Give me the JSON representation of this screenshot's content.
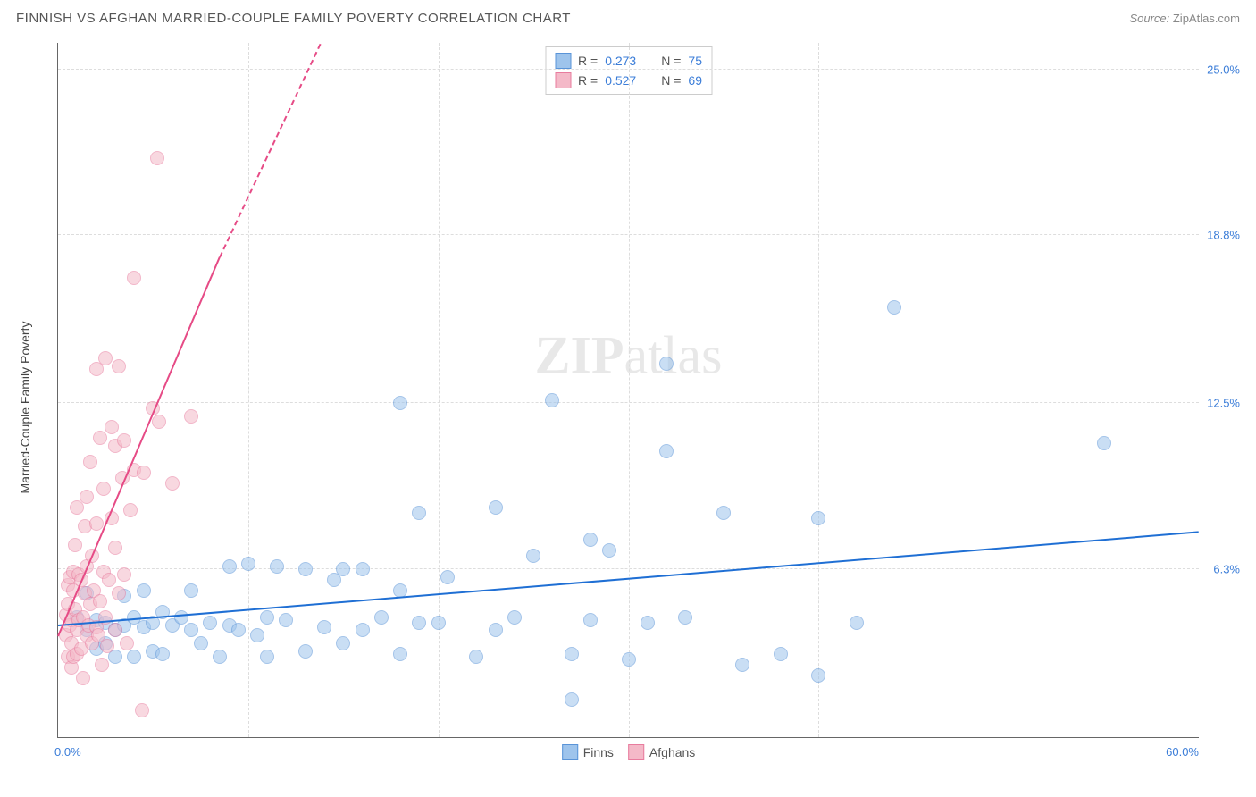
{
  "header": {
    "title": "FINNISH VS AFGHAN MARRIED-COUPLE FAMILY POVERTY CORRELATION CHART",
    "source_prefix": "Source: ",
    "source_name": "ZipAtlas.com"
  },
  "chart": {
    "type": "scatter",
    "ylabel": "Married-Couple Family Poverty",
    "watermark_bold": "ZIP",
    "watermark_rest": "atlas",
    "xlim": [
      0,
      60
    ],
    "ylim": [
      0,
      26
    ],
    "x_ticks_major": [
      0,
      60
    ],
    "x_tick_labels": [
      "0.0%",
      "60.0%"
    ],
    "x_ticks_minor": [
      10,
      20,
      30,
      40,
      50
    ],
    "y_ticks": [
      6.3,
      12.5,
      18.8,
      25.0
    ],
    "y_tick_labels": [
      "6.3%",
      "12.5%",
      "18.8%",
      "25.0%"
    ],
    "grid_color": "#dddddd",
    "axis_color": "#666666",
    "tick_label_color": "#3b7dd8",
    "plot_background": "#ffffff",
    "point_radius": 8,
    "point_opacity": 0.55,
    "regression_line_width": 2.5,
    "series": [
      {
        "name": "Finns",
        "color_fill": "#9ec4ec",
        "color_stroke": "#5a94d8",
        "reg_color": "#1f6fd4",
        "R": "0.273",
        "N": "75",
        "regression": {
          "x1": 0,
          "y1": 4.2,
          "x2": 60,
          "y2": 7.7,
          "dashed_after_x": 60
        },
        "points": [
          [
            1,
            4.5
          ],
          [
            1.5,
            4.0
          ],
          [
            1.5,
            5.4
          ],
          [
            2,
            3.3
          ],
          [
            2,
            4.4
          ],
          [
            2.5,
            3.5
          ],
          [
            2.5,
            4.3
          ],
          [
            3,
            3.0
          ],
          [
            3,
            4.0
          ],
          [
            3.5,
            4.2
          ],
          [
            3.5,
            5.3
          ],
          [
            4,
            3.0
          ],
          [
            4,
            4.5
          ],
          [
            4.5,
            4.1
          ],
          [
            4.5,
            5.5
          ],
          [
            5,
            3.2
          ],
          [
            5,
            4.3
          ],
          [
            5.5,
            3.1
          ],
          [
            5.5,
            4.7
          ],
          [
            6,
            4.2
          ],
          [
            6.5,
            4.5
          ],
          [
            7,
            4.0
          ],
          [
            7,
            5.5
          ],
          [
            7.5,
            3.5
          ],
          [
            8,
            4.3
          ],
          [
            8.5,
            3.0
          ],
          [
            9,
            4.2
          ],
          [
            9,
            6.4
          ],
          [
            9.5,
            4.0
          ],
          [
            10,
            6.5
          ],
          [
            10.5,
            3.8
          ],
          [
            11,
            3.0
          ],
          [
            11,
            4.5
          ],
          [
            11.5,
            6.4
          ],
          [
            12,
            4.4
          ],
          [
            13,
            6.3
          ],
          [
            13,
            3.2
          ],
          [
            14,
            4.1
          ],
          [
            14.5,
            5.9
          ],
          [
            15,
            6.3
          ],
          [
            15,
            3.5
          ],
          [
            16,
            4.0
          ],
          [
            16,
            6.3
          ],
          [
            17,
            4.5
          ],
          [
            18,
            3.1
          ],
          [
            18,
            5.5
          ],
          [
            18,
            12.5
          ],
          [
            19,
            4.3
          ],
          [
            19,
            8.4
          ],
          [
            20,
            4.3
          ],
          [
            20.5,
            6.0
          ],
          [
            22,
            3.0
          ],
          [
            23,
            4.0
          ],
          [
            23,
            8.6
          ],
          [
            24,
            4.5
          ],
          [
            25,
            6.8
          ],
          [
            26,
            12.6
          ],
          [
            27,
            1.4
          ],
          [
            27,
            3.1
          ],
          [
            28,
            7.4
          ],
          [
            28,
            4.4
          ],
          [
            29,
            7.0
          ],
          [
            30,
            2.9
          ],
          [
            31,
            4.3
          ],
          [
            32,
            10.7
          ],
          [
            32,
            14.0
          ],
          [
            33,
            4.5
          ],
          [
            35,
            8.4
          ],
          [
            36,
            2.7
          ],
          [
            38,
            3.1
          ],
          [
            40,
            8.2
          ],
          [
            40,
            2.3
          ],
          [
            42,
            4.3
          ],
          [
            44,
            16.1
          ],
          [
            55,
            11.0
          ]
        ]
      },
      {
        "name": "Afghans",
        "color_fill": "#f4b9c8",
        "color_stroke": "#e87c9e",
        "reg_color": "#e64b86",
        "R": "0.527",
        "N": "69",
        "regression": {
          "x1": 0,
          "y1": 3.8,
          "x2": 8.5,
          "y2": 18.0,
          "dashed_after_x": 8.5,
          "dash_x2": 13.8,
          "dash_y2": 26
        },
        "points": [
          [
            0.4,
            3.8
          ],
          [
            0.4,
            4.6
          ],
          [
            0.5,
            3.0
          ],
          [
            0.5,
            5.0
          ],
          [
            0.5,
            5.7
          ],
          [
            0.6,
            4.2
          ],
          [
            0.6,
            6.0
          ],
          [
            0.7,
            2.6
          ],
          [
            0.7,
            3.5
          ],
          [
            0.7,
            4.4
          ],
          [
            0.8,
            3.0
          ],
          [
            0.8,
            5.5
          ],
          [
            0.8,
            6.2
          ],
          [
            0.9,
            4.8
          ],
          [
            0.9,
            7.2
          ],
          [
            1.0,
            3.1
          ],
          [
            1.0,
            4.0
          ],
          [
            1.0,
            8.6
          ],
          [
            1.1,
            4.4
          ],
          [
            1.1,
            6.1
          ],
          [
            1.2,
            3.3
          ],
          [
            1.2,
            5.9
          ],
          [
            1.3,
            4.5
          ],
          [
            1.3,
            2.2
          ],
          [
            1.4,
            5.4
          ],
          [
            1.4,
            7.9
          ],
          [
            1.5,
            3.8
          ],
          [
            1.5,
            6.4
          ],
          [
            1.5,
            9.0
          ],
          [
            1.6,
            4.2
          ],
          [
            1.7,
            5.0
          ],
          [
            1.7,
            10.3
          ],
          [
            1.8,
            3.5
          ],
          [
            1.8,
            6.8
          ],
          [
            1.9,
            5.5
          ],
          [
            2.0,
            4.1
          ],
          [
            2.0,
            8.0
          ],
          [
            2.0,
            13.8
          ],
          [
            2.1,
            3.8
          ],
          [
            2.2,
            5.1
          ],
          [
            2.2,
            11.2
          ],
          [
            2.3,
            2.7
          ],
          [
            2.4,
            6.2
          ],
          [
            2.4,
            9.3
          ],
          [
            2.5,
            4.5
          ],
          [
            2.5,
            14.2
          ],
          [
            2.6,
            3.4
          ],
          [
            2.7,
            5.9
          ],
          [
            2.8,
            8.2
          ],
          [
            2.8,
            11.6
          ],
          [
            3.0,
            4.0
          ],
          [
            3.0,
            7.1
          ],
          [
            3.0,
            10.9
          ],
          [
            3.2,
            5.4
          ],
          [
            3.2,
            13.9
          ],
          [
            3.4,
            9.7
          ],
          [
            3.5,
            6.1
          ],
          [
            3.5,
            11.1
          ],
          [
            3.6,
            3.5
          ],
          [
            3.8,
            8.5
          ],
          [
            4.0,
            10.0
          ],
          [
            4.0,
            17.2
          ],
          [
            4.4,
            1.0
          ],
          [
            4.5,
            9.9
          ],
          [
            5.0,
            12.3
          ],
          [
            5.2,
            21.7
          ],
          [
            5.3,
            11.8
          ],
          [
            6.0,
            9.5
          ],
          [
            7.0,
            12.0
          ]
        ]
      }
    ],
    "legend_top": {
      "rows": [
        {
          "series_index": 0,
          "r_label": "R =",
          "n_label": "N ="
        },
        {
          "series_index": 1,
          "r_label": "R =",
          "n_label": "N ="
        }
      ]
    },
    "legend_bottom": [
      {
        "series_index": 0
      },
      {
        "series_index": 1
      }
    ]
  }
}
